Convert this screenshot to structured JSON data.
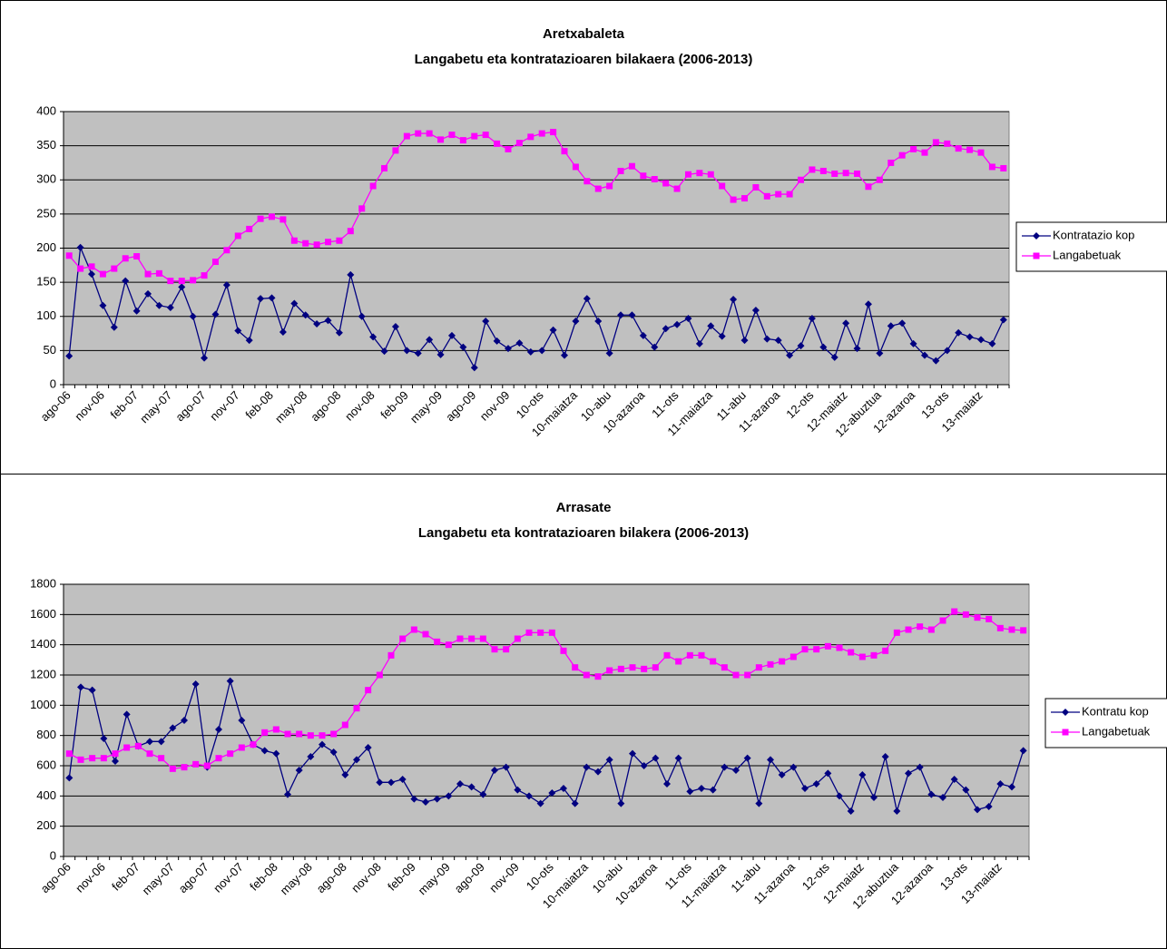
{
  "chart_data": [
    {
      "type": "line",
      "title": "Aretxabaleta",
      "subtitle": "Langabetu eta kontratazioaren bilakaera (2006-2013)",
      "categories": [
        "ago-06",
        null,
        null,
        "nov-06",
        null,
        null,
        "feb-07",
        null,
        null,
        "may-07",
        null,
        null,
        "ago-07",
        null,
        null,
        "nov-07",
        null,
        null,
        "feb-08",
        null,
        null,
        "may-08",
        null,
        null,
        "ago-08",
        null,
        null,
        "nov-08",
        null,
        null,
        "feb-09",
        null,
        null,
        "may-09",
        null,
        null,
        "ago-09",
        null,
        null,
        "nov-09",
        null,
        null,
        "10-ots",
        null,
        null,
        "10-maiatza",
        null,
        null,
        "10-abu",
        null,
        null,
        "10-azaroa",
        null,
        null,
        "11-ots",
        null,
        null,
        "11-maiatza",
        null,
        null,
        "11-abu",
        null,
        null,
        "11-azaroa",
        null,
        null,
        "12-ots",
        null,
        null,
        "12-maiatz",
        null,
        null,
        "12-abuztua",
        null,
        null,
        "12-azaroa",
        null,
        null,
        "13-ots",
        null,
        null,
        "13-maiatz",
        null,
        null
      ],
      "series": [
        {
          "name": "Kontratazio kop",
          "color": "#000080",
          "marker": "diamond",
          "values": [
            42,
            201,
            162,
            116,
            84,
            152,
            108,
            133,
            116,
            113,
            143,
            100,
            39,
            103,
            146,
            79,
            65,
            126,
            127,
            77,
            119,
            102,
            89,
            94,
            76,
            161,
            100,
            70,
            49,
            85,
            50,
            46,
            66,
            44,
            72,
            55,
            25,
            93,
            64,
            53,
            61,
            48,
            50,
            80,
            43,
            93,
            126,
            93,
            46,
            102,
            102,
            72,
            55,
            82,
            88,
            97,
            60,
            86,
            71,
            125,
            65,
            109,
            67,
            65,
            43,
            57,
            97,
            55,
            40,
            90,
            53,
            118,
            46,
            86,
            90,
            60,
            43,
            35,
            50,
            76,
            70,
            66,
            60,
            95
          ]
        },
        {
          "name": "Langabetuak",
          "color": "#ff00ff",
          "marker": "square",
          "values": [
            189,
            170,
            173,
            162,
            170,
            185,
            188,
            162,
            163,
            152,
            152,
            153,
            160,
            180,
            197,
            218,
            228,
            243,
            246,
            242,
            211,
            207,
            205,
            209,
            211,
            225,
            258,
            291,
            317,
            343,
            364,
            368,
            368,
            359,
            366,
            358,
            364,
            366,
            353,
            345,
            354,
            363,
            368,
            370,
            342,
            319,
            298,
            287,
            291,
            313,
            320,
            306,
            301,
            295,
            287,
            308,
            310,
            308,
            291,
            271,
            273,
            289,
            276,
            279,
            279,
            300,
            315,
            313,
            309,
            310,
            309,
            290,
            300,
            325,
            336,
            345,
            340,
            355,
            353,
            346,
            344,
            340,
            319,
            317
          ]
        }
      ],
      "ylim": [
        0,
        400
      ],
      "yticks": [
        0,
        50,
        100,
        150,
        200,
        250,
        300,
        350,
        400
      ],
      "grid": true,
      "plot_color": "#c0c0c0",
      "legend": "right"
    },
    {
      "type": "line",
      "title": "Arrasate",
      "subtitle": "Langabetu eta kontratazioaren bilakera (2006-2013)",
      "categories": [
        "ago-06",
        null,
        null,
        "nov-06",
        null,
        null,
        "feb-07",
        null,
        null,
        "may-07",
        null,
        null,
        "ago-07",
        null,
        null,
        "nov-07",
        null,
        null,
        "feb-08",
        null,
        null,
        "may-08",
        null,
        null,
        "ago-08",
        null,
        null,
        "nov-08",
        null,
        null,
        "feb-09",
        null,
        null,
        "may-09",
        null,
        null,
        "ago-09",
        null,
        null,
        "nov-09",
        null,
        null,
        "10-ots",
        null,
        null,
        "10-maiatza",
        null,
        null,
        "10-abu",
        null,
        null,
        "10-azaroa",
        null,
        null,
        "11-ots",
        null,
        null,
        "11-maiatza",
        null,
        null,
        "11-abu",
        null,
        null,
        "11-azaroa",
        null,
        null,
        "12-ots",
        null,
        null,
        "12-maiatz",
        null,
        null,
        "12-abuztua",
        null,
        null,
        "12-azaroa",
        null,
        null,
        "13-ots",
        null,
        null,
        "13-maiatz",
        null,
        null
      ],
      "series": [
        {
          "name": "Kontratu kop",
          "color": "#000080",
          "marker": "diamond",
          "values": [
            520,
            1120,
            1100,
            780,
            630,
            940,
            730,
            760,
            760,
            850,
            900,
            1140,
            590,
            840,
            1160,
            900,
            740,
            700,
            680,
            410,
            570,
            660,
            740,
            690,
            540,
            640,
            720,
            490,
            490,
            510,
            380,
            360,
            380,
            400,
            480,
            460,
            410,
            570,
            590,
            440,
            400,
            350,
            420,
            450,
            350,
            590,
            560,
            640,
            350,
            680,
            600,
            650,
            480,
            650,
            430,
            450,
            440,
            590,
            570,
            650,
            350,
            640,
            540,
            590,
            450,
            480,
            550,
            400,
            300,
            540,
            390,
            660,
            300,
            550,
            590,
            410,
            390,
            510,
            440,
            310,
            330,
            480,
            460,
            700
          ]
        },
        {
          "name": "Langabetuak",
          "color": "#ff00ff",
          "marker": "square",
          "values": [
            680,
            640,
            650,
            650,
            680,
            720,
            730,
            680,
            650,
            580,
            590,
            610,
            600,
            650,
            680,
            720,
            740,
            820,
            840,
            810,
            810,
            800,
            800,
            810,
            870,
            980,
            1100,
            1200,
            1330,
            1440,
            1500,
            1470,
            1420,
            1400,
            1440,
            1440,
            1440,
            1370,
            1370,
            1440,
            1480,
            1480,
            1480,
            1360,
            1250,
            1200,
            1190,
            1230,
            1240,
            1250,
            1240,
            1250,
            1330,
            1290,
            1330,
            1330,
            1290,
            1250,
            1200,
            1200,
            1250,
            1270,
            1290,
            1320,
            1370,
            1370,
            1390,
            1380,
            1350,
            1320,
            1330,
            1360,
            1480,
            1500,
            1520,
            1500,
            1560,
            1620,
            1600,
            1580,
            1570,
            1510,
            1500,
            1495
          ]
        }
      ],
      "ylim": [
        0,
        1800
      ],
      "yticks": [
        0,
        200,
        400,
        600,
        800,
        1000,
        1200,
        1400,
        1600,
        1800
      ],
      "grid": true,
      "plot_color": "#c0c0c0",
      "legend": "right"
    }
  ]
}
